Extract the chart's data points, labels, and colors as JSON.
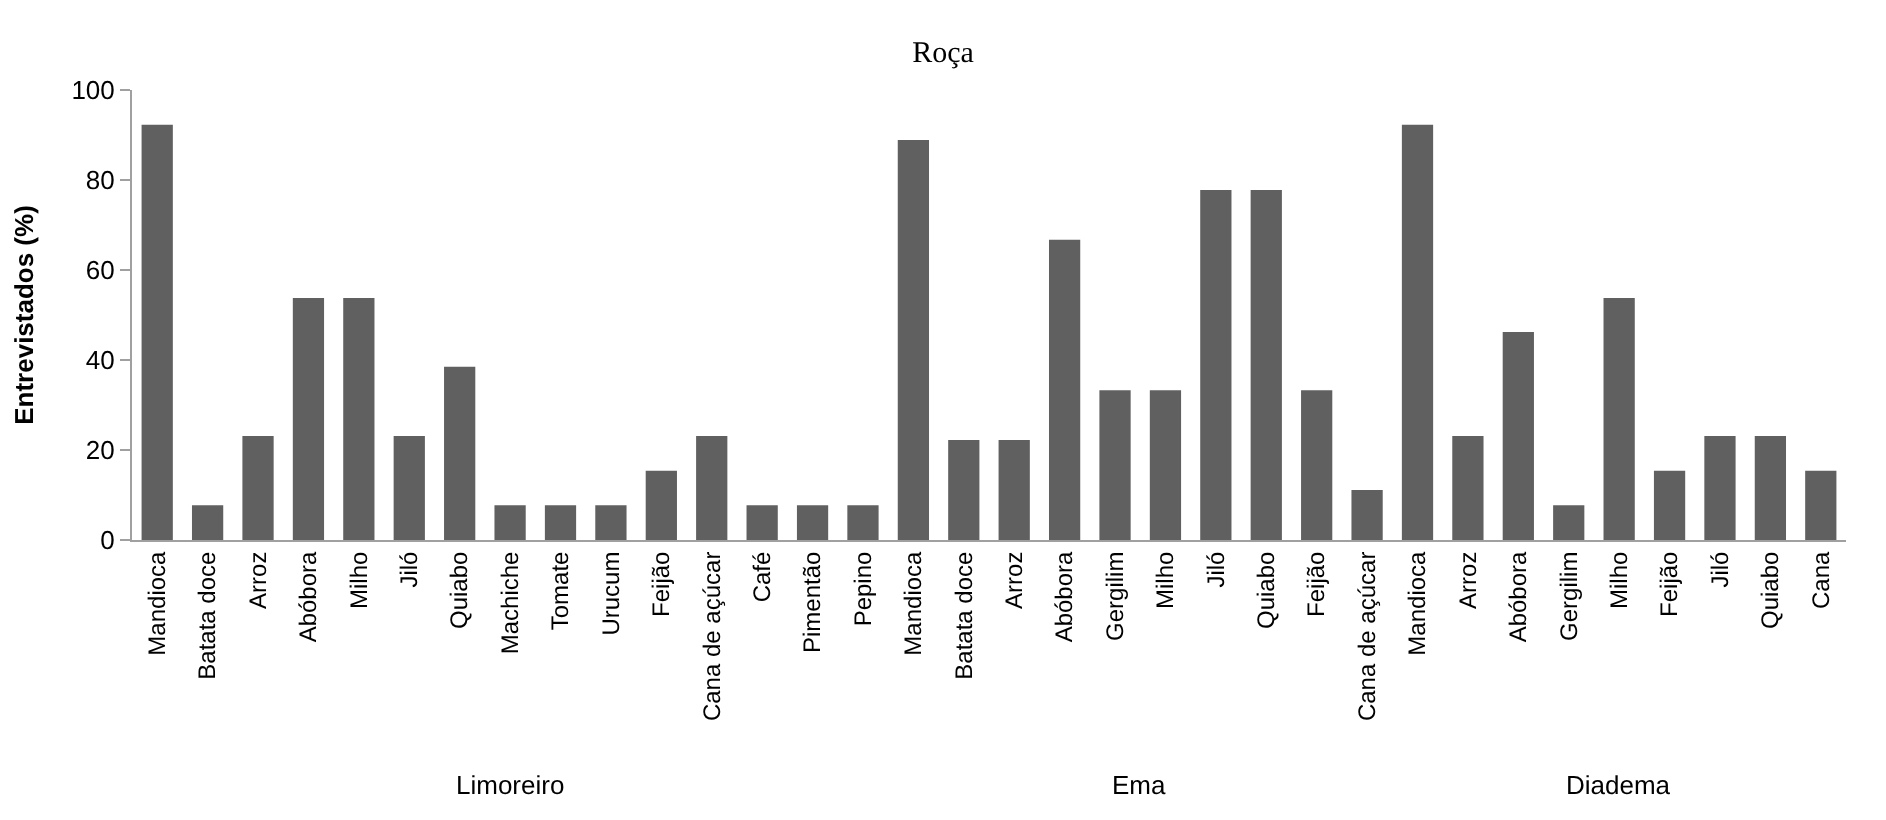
{
  "chart_data": [
    {
      "type": "bar",
      "ylabel": "Entrevistados (%)",
      "xlabel": "Limoreiro",
      "color": "#606060",
      "ylim": [
        0,
        100
      ],
      "yticks": [
        0,
        20,
        40,
        60,
        80,
        100
      ],
      "categories": [
        "Mandioca",
        "Batata doce",
        "Arroz",
        "Abóbora",
        "Milho",
        "Jiló",
        "Quiabo",
        "Machiche",
        "Tomate",
        "Urucum",
        "Feijão",
        "Cana de açúcar",
        "Café",
        "Pimentão",
        "Pepino"
      ],
      "values": [
        92.3,
        7.7,
        23.1,
        53.8,
        53.8,
        23.1,
        38.5,
        7.7,
        7.7,
        7.7,
        15.4,
        23.1,
        7.7,
        7.7,
        7.7
      ]
    },
    {
      "type": "bar",
      "title": "Roça",
      "xlabel": "Ema",
      "color": "#606060",
      "ylim": [
        0,
        100
      ],
      "tick_labels": "x",
      "categories": [
        "Mandioca",
        "Batata doce",
        "Arroz",
        "Abóbora",
        "Gergilim",
        "Milho",
        "Jiló",
        "Quiabo",
        "Feijão",
        "Cana de açúcar"
      ],
      "values": [
        88.9,
        22.2,
        22.2,
        66.7,
        33.3,
        33.3,
        77.8,
        77.8,
        33.3,
        11.1
      ]
    },
    {
      "type": "bar",
      "xlabel": "Diadema",
      "color": "#606060",
      "ylim": [
        0,
        100
      ],
      "tick_labels": "x",
      "categories": [
        "Mandioca",
        "Arroz",
        "Abóbora",
        "Gergilim",
        "Milho",
        "Feijão",
        "Jiló",
        "Quiabo",
        "Cana"
      ],
      "values": [
        92.3,
        23.1,
        46.2,
        7.7,
        53.8,
        15.4,
        23.1,
        23.1,
        15.4
      ]
    }
  ]
}
